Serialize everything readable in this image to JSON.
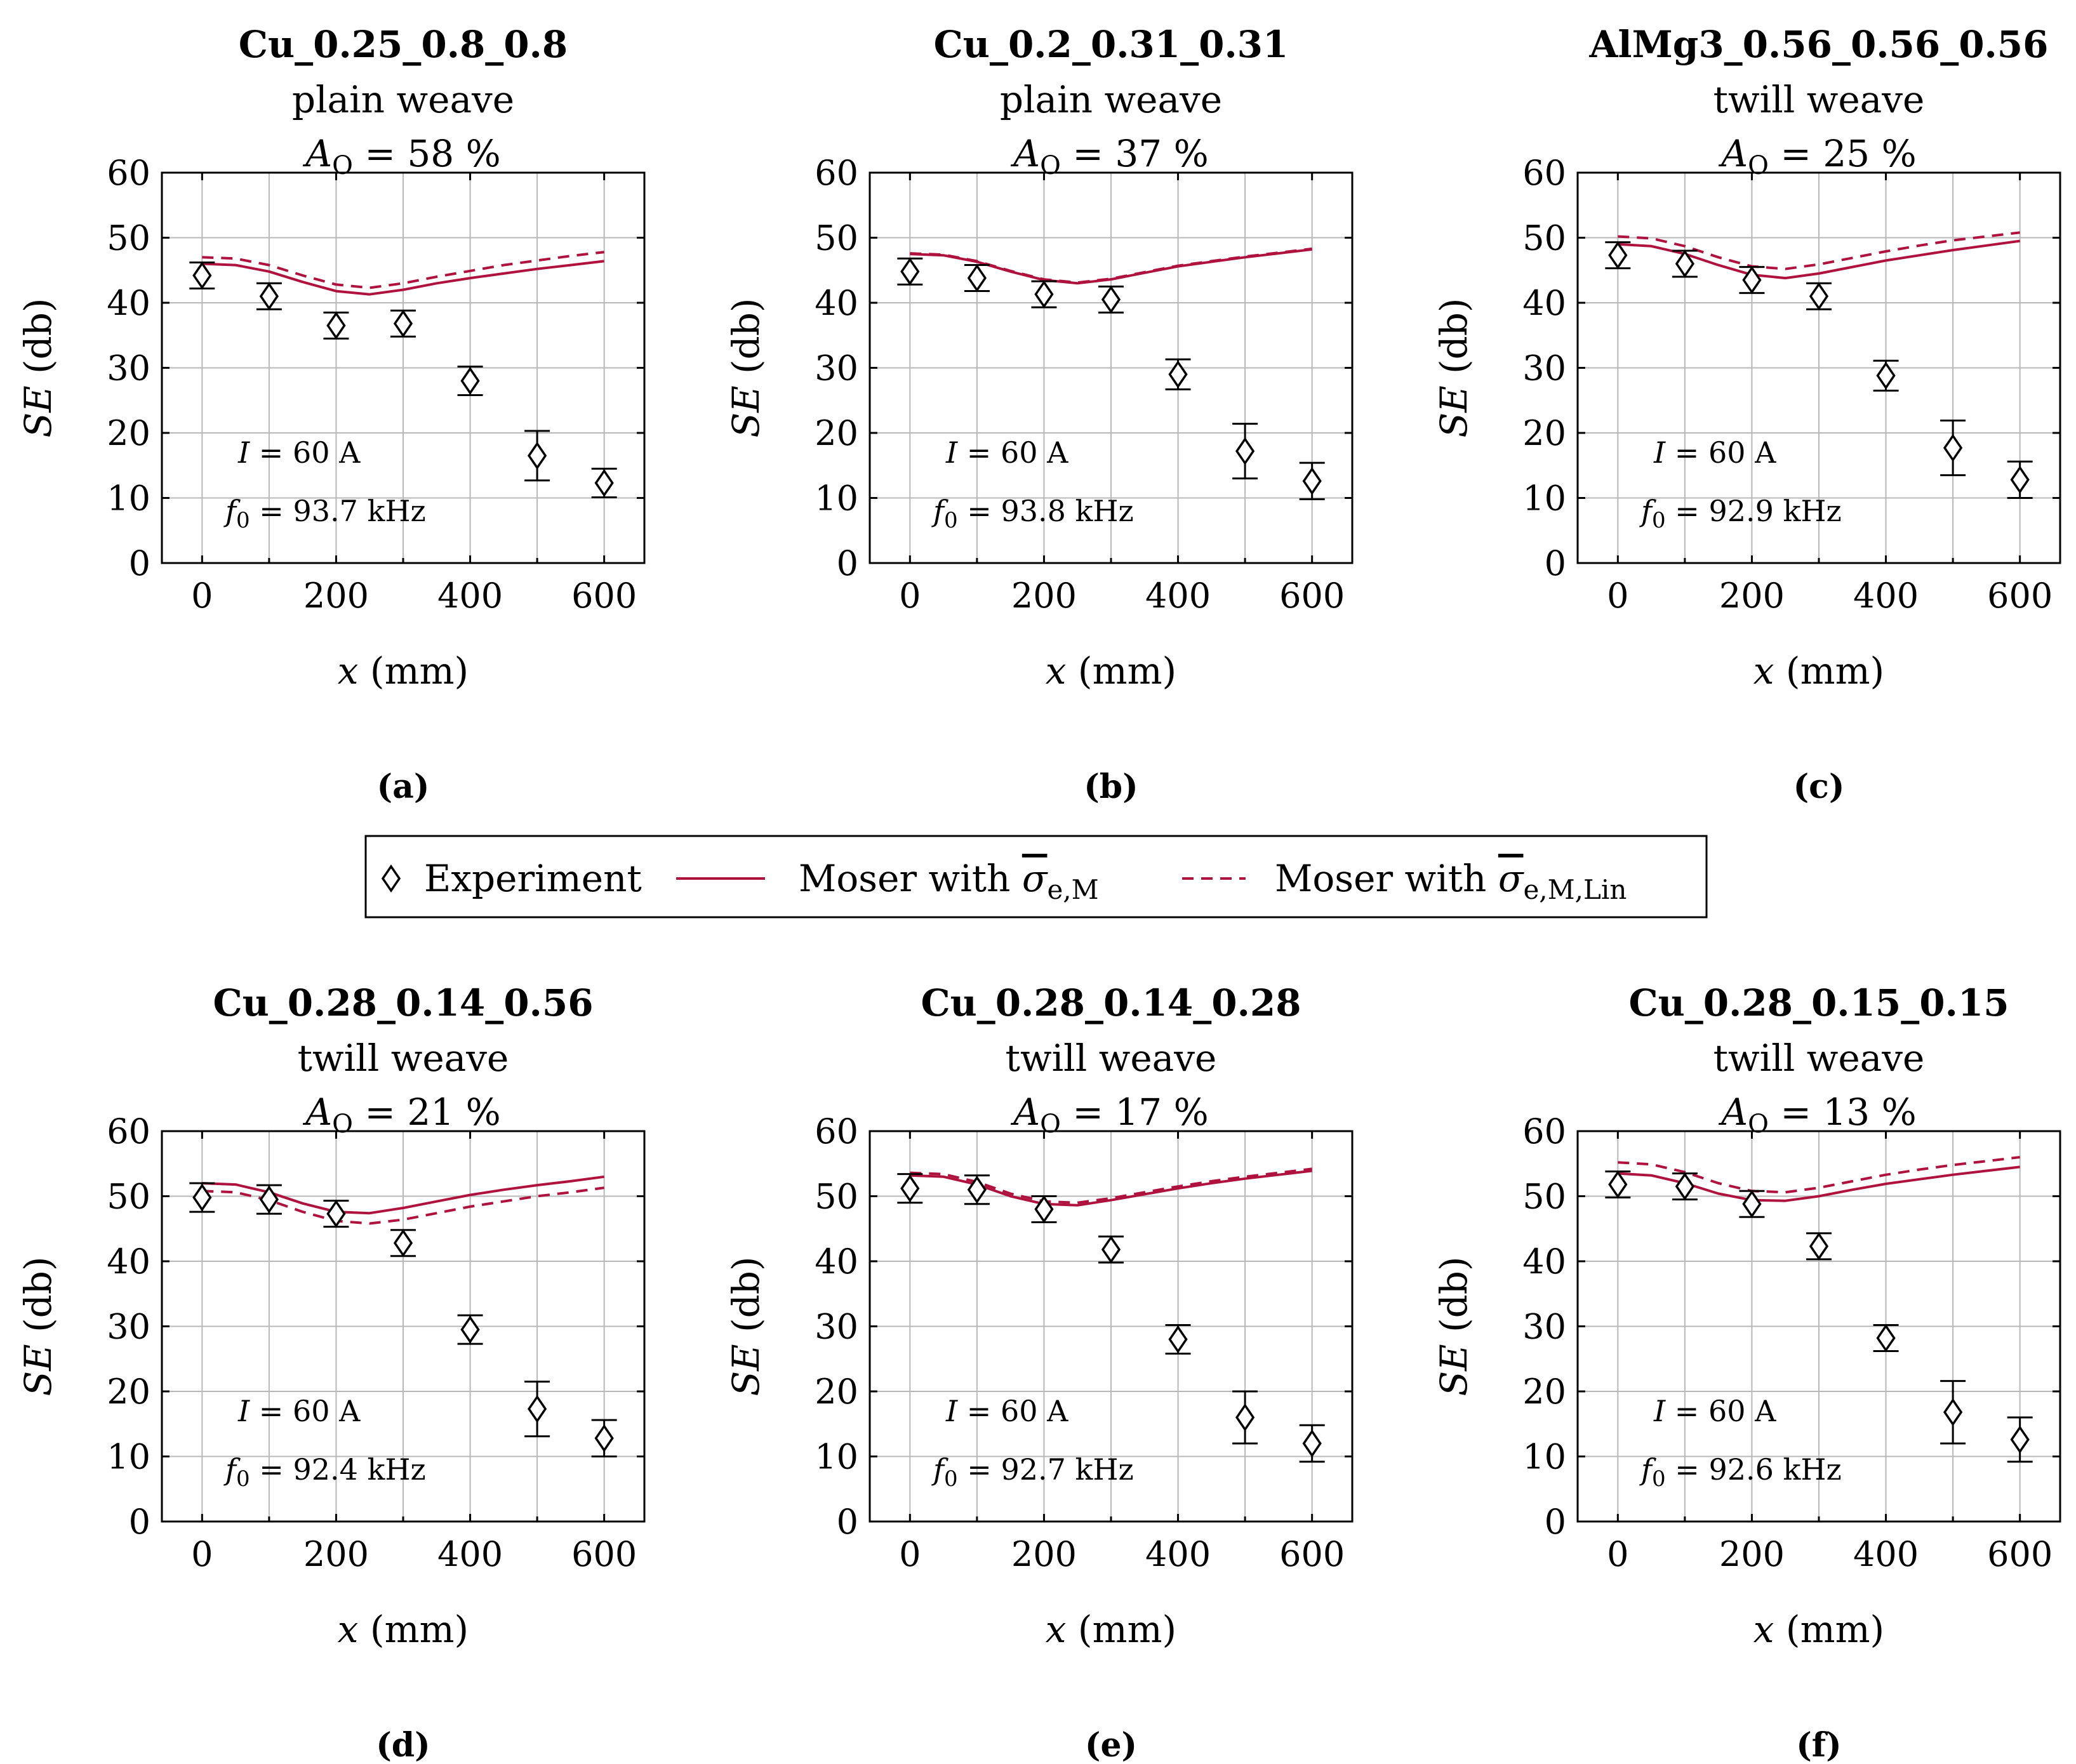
{
  "colors": {
    "model": "#b0123f",
    "experiment": "#000000",
    "grid": "#b8b8b8"
  },
  "legend": {
    "experiment": "Experiment",
    "moser_m": "Moser with σ̄e,M",
    "moser_m_lin": "Moser with σ̄e,M,Lin"
  },
  "axes": {
    "xlabel": "x (mm)",
    "ylabel": "SE (db)",
    "xticks": [
      "0",
      "200",
      "400",
      "600"
    ],
    "yticks": [
      "0",
      "10",
      "20",
      "30",
      "40",
      "50",
      "60"
    ]
  },
  "chart_data": [
    {
      "type": "line",
      "panel": "(a)",
      "title": "Cu_0.25_0.8_0.8",
      "weave": "plain weave",
      "open_area": "AO = 58 %",
      "current": "I = 60   A",
      "frequency": "f0 = 93.7 kHz",
      "xlabel": "x (mm)",
      "ylabel": "SE (db)",
      "xlim": [
        -60,
        660
      ],
      "ylim": [
        0,
        60
      ],
      "experiment": {
        "x": [
          0,
          100,
          200,
          300,
          400,
          500,
          600
        ],
        "y": [
          44.2,
          41.0,
          36.5,
          36.8,
          28.0,
          16.5,
          12.3
        ],
        "err": [
          2.0,
          2.0,
          2.0,
          2.0,
          2.2,
          3.8,
          2.2
        ]
      },
      "series": [
        {
          "name": "Moser with σ̄e,M",
          "x": [
            0,
            50,
            100,
            150,
            200,
            250,
            300,
            350,
            400,
            450,
            500,
            550,
            600
          ],
          "values": [
            46.0,
            45.8,
            44.8,
            43.2,
            41.8,
            41.3,
            42.0,
            43.0,
            43.8,
            44.5,
            45.2,
            45.8,
            46.4
          ]
        },
        {
          "name": "Moser with σ̄e,M,Lin",
          "x": [
            0,
            50,
            100,
            150,
            200,
            250,
            300,
            350,
            400,
            450,
            500,
            550,
            600
          ],
          "values": [
            47.0,
            46.8,
            45.8,
            44.2,
            42.8,
            42.3,
            43.0,
            44.0,
            44.9,
            45.8,
            46.5,
            47.2,
            47.8
          ]
        }
      ]
    },
    {
      "type": "line",
      "panel": "(b)",
      "title": "Cu_0.2_0.31_0.31",
      "weave": "plain weave",
      "open_area": "AO = 37 %",
      "current": "I = 60   A",
      "frequency": "f0 = 93.8 kHz",
      "xlabel": "x (mm)",
      "ylabel": "SE (db)",
      "xlim": [
        -60,
        660
      ],
      "ylim": [
        0,
        60
      ],
      "experiment": {
        "x": [
          0,
          100,
          200,
          300,
          400,
          500,
          600
        ],
        "y": [
          44.8,
          43.8,
          41.3,
          40.5,
          29.0,
          17.2,
          12.6
        ],
        "err": [
          2.0,
          2.0,
          2.0,
          2.0,
          2.3,
          4.2,
          2.8
        ]
      },
      "series": [
        {
          "name": "Moser with σ̄e,M",
          "x": [
            0,
            50,
            100,
            150,
            200,
            250,
            300,
            350,
            400,
            450,
            500,
            550,
            600
          ],
          "values": [
            47.5,
            47.3,
            46.3,
            44.8,
            43.5,
            43.0,
            43.6,
            44.6,
            45.6,
            46.3,
            47.0,
            47.6,
            48.2
          ]
        },
        {
          "name": "Moser with σ̄e,M,Lin",
          "x": [
            0,
            50,
            100,
            150,
            200,
            250,
            300,
            350,
            400,
            450,
            500,
            550,
            600
          ],
          "values": [
            47.6,
            47.4,
            46.4,
            44.9,
            43.6,
            43.1,
            43.7,
            44.7,
            45.7,
            46.4,
            47.1,
            47.7,
            48.3
          ]
        }
      ]
    },
    {
      "type": "line",
      "panel": "(c)",
      "title": "AlMg3_0.56_0.56_0.56",
      "weave": "twill weave",
      "open_area": "AO = 25 %",
      "current": "I = 60   A",
      "frequency": "f0 = 92.9 kHz",
      "xlabel": "x (mm)",
      "ylabel": "SE (db)",
      "xlim": [
        -60,
        660
      ],
      "ylim": [
        0,
        60
      ],
      "experiment": {
        "x": [
          0,
          100,
          200,
          300,
          400,
          500,
          600
        ],
        "y": [
          47.3,
          46.0,
          43.5,
          41.0,
          28.8,
          17.7,
          12.8
        ],
        "err": [
          2.0,
          2.0,
          2.0,
          2.0,
          2.3,
          4.2,
          2.8
        ]
      },
      "series": [
        {
          "name": "Moser with σ̄e,M",
          "x": [
            0,
            50,
            100,
            150,
            200,
            250,
            300,
            350,
            400,
            450,
            500,
            550,
            600
          ],
          "values": [
            49.0,
            48.7,
            47.5,
            45.8,
            44.3,
            43.8,
            44.5,
            45.5,
            46.5,
            47.3,
            48.1,
            48.8,
            49.5
          ]
        },
        {
          "name": "Moser with σ̄e,M,Lin",
          "x": [
            0,
            50,
            100,
            150,
            200,
            250,
            300,
            350,
            400,
            450,
            500,
            550,
            600
          ],
          "values": [
            50.2,
            49.9,
            48.7,
            47.0,
            45.6,
            45.2,
            45.9,
            46.9,
            47.9,
            48.8,
            49.6,
            50.2,
            50.8
          ]
        }
      ]
    },
    {
      "type": "line",
      "panel": "(d)",
      "title": "Cu_0.28_0.14_0.56",
      "weave": "twill weave",
      "open_area": "AO = 21 %",
      "current": "I = 60   A",
      "frequency": "f0 = 92.4 kHz",
      "xlabel": "x (mm)",
      "ylabel": "SE (db)",
      "xlim": [
        -60,
        660
      ],
      "ylim": [
        0,
        60
      ],
      "experiment": {
        "x": [
          0,
          100,
          200,
          300,
          400,
          500,
          600
        ],
        "y": [
          49.8,
          49.5,
          47.3,
          42.8,
          29.5,
          17.3,
          12.8
        ],
        "err": [
          2.2,
          2.2,
          2.0,
          2.0,
          2.2,
          4.2,
          2.8
        ]
      },
      "series": [
        {
          "name": "Moser with σ̄e,M",
          "x": [
            0,
            50,
            100,
            150,
            200,
            250,
            300,
            350,
            400,
            450,
            500,
            550,
            600
          ],
          "values": [
            52.0,
            51.8,
            50.6,
            48.9,
            47.6,
            47.4,
            48.2,
            49.2,
            50.2,
            51.0,
            51.7,
            52.3,
            53.0
          ]
        },
        {
          "name": "Moser with σ̄e,M,Lin",
          "x": [
            0,
            50,
            100,
            150,
            200,
            250,
            300,
            350,
            400,
            450,
            500,
            550,
            600
          ],
          "values": [
            50.8,
            50.6,
            49.4,
            47.6,
            46.2,
            45.8,
            46.4,
            47.4,
            48.4,
            49.2,
            50.0,
            50.6,
            51.3
          ]
        }
      ]
    },
    {
      "type": "line",
      "panel": "(e)",
      "title": "Cu_0.28_0.14_0.28",
      "weave": "twill weave",
      "open_area": "AO = 17 %",
      "current": "I = 60   A",
      "frequency": "f0 = 92.7 kHz",
      "xlabel": "x (mm)",
      "ylabel": "SE (db)",
      "xlim": [
        -60,
        660
      ],
      "ylim": [
        0,
        60
      ],
      "experiment": {
        "x": [
          0,
          100,
          200,
          300,
          400,
          500,
          600
        ],
        "y": [
          51.2,
          51.0,
          48.0,
          41.8,
          28.0,
          16.0,
          12.0
        ],
        "err": [
          2.2,
          2.2,
          2.0,
          2.0,
          2.2,
          4.0,
          2.8
        ]
      },
      "series": [
        {
          "name": "Moser with σ̄e,M",
          "x": [
            0,
            50,
            100,
            150,
            200,
            250,
            300,
            350,
            400,
            450,
            500,
            550,
            600
          ],
          "values": [
            53.2,
            53.0,
            51.8,
            50.0,
            48.8,
            48.6,
            49.4,
            50.3,
            51.2,
            52.0,
            52.7,
            53.3,
            53.9
          ]
        },
        {
          "name": "Moser with σ̄e,M,Lin",
          "x": [
            0,
            50,
            100,
            150,
            200,
            250,
            300,
            350,
            400,
            450,
            500,
            550,
            600
          ],
          "values": [
            53.6,
            53.4,
            52.2,
            50.4,
            49.2,
            49.0,
            49.7,
            50.6,
            51.5,
            52.3,
            53.0,
            53.6,
            54.2
          ]
        }
      ]
    },
    {
      "type": "line",
      "panel": "(f)",
      "title": "Cu_0.28_0.15_0.15",
      "weave": "twill weave",
      "open_area": "AO = 13 %",
      "current": "I = 60   A",
      "frequency": "f0 = 92.6 kHz",
      "xlabel": "x (mm)",
      "ylabel": "SE (db)",
      "xlim": [
        -60,
        660
      ],
      "ylim": [
        0,
        60
      ],
      "experiment": {
        "x": [
          0,
          100,
          200,
          300,
          400,
          500,
          600
        ],
        "y": [
          51.8,
          51.5,
          48.8,
          42.3,
          28.2,
          16.8,
          12.6
        ],
        "err": [
          2.0,
          2.0,
          2.0,
          2.0,
          2.0,
          4.8,
          3.4
        ]
      },
      "series": [
        {
          "name": "Moser with σ̄e,M",
          "x": [
            0,
            50,
            100,
            150,
            200,
            250,
            300,
            350,
            400,
            450,
            500,
            550,
            600
          ],
          "values": [
            53.5,
            53.2,
            52.0,
            50.4,
            49.4,
            49.3,
            50.0,
            51.0,
            51.9,
            52.6,
            53.3,
            53.9,
            54.5
          ]
        },
        {
          "name": "Moser with σ̄e,M,Lin",
          "x": [
            0,
            50,
            100,
            150,
            200,
            250,
            300,
            350,
            400,
            450,
            500,
            550,
            600
          ],
          "values": [
            55.2,
            54.9,
            53.7,
            52.0,
            50.8,
            50.6,
            51.3,
            52.3,
            53.3,
            54.1,
            54.8,
            55.4,
            56.0
          ]
        }
      ]
    }
  ]
}
